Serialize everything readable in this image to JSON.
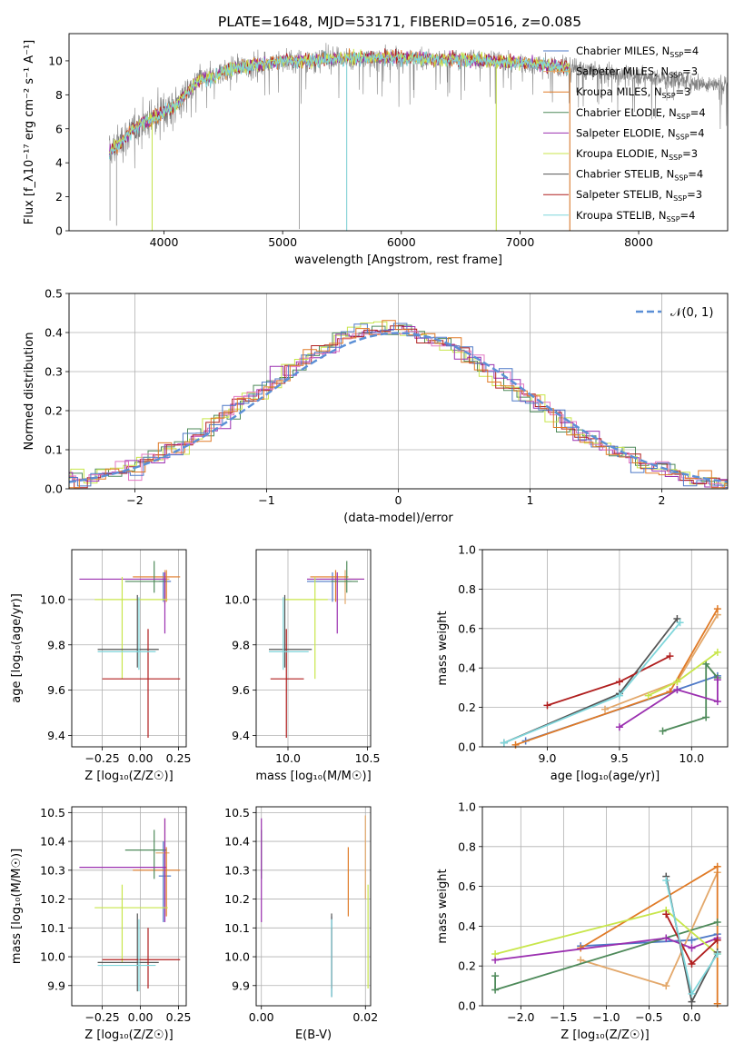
{
  "figure_title": "PLATE=1648, MJD=53171, FIBERID=0516, z=0.085",
  "colors": {
    "Chabrier MILES": "#4e79c7",
    "Salpeter MILES": "#e3a86b",
    "Kroupa MILES": "#e07a26",
    "Chabrier ELODIE": "#4e8a5a",
    "Salpeter ELODIE": "#9b30b0",
    "Kroupa ELODIE": "#c8e64b",
    "Chabrier STELIB": "#555555",
    "Salpeter STELIB": "#b01e1e",
    "Kroupa STELIB": "#7fd6db",
    "hist_blue": "#5b8fd6",
    "hist_pink": "#e377c2",
    "data": "#808080"
  },
  "chart_data": [
    {
      "type": "line",
      "id": "spectrum",
      "xlabel": "wavelength [Angstrom, rest frame]",
      "ylabel": "Flux [f_λ10⁻¹⁷ erg cm⁻² s⁻¹ A⁻¹]",
      "xlim": [
        3200,
        8750
      ],
      "ylim": [
        0,
        11.6
      ],
      "xticks": [
        4000,
        5000,
        6000,
        7000,
        8000
      ],
      "yticks": [
        0,
        2,
        4,
        6,
        8,
        10
      ],
      "grid": false,
      "legend_position": "right",
      "legend": [
        {
          "label": "Chabrier MILES, N",
          "sub": "SSP",
          "suffix": "=4"
        },
        {
          "label": "Salpeter MILES, N",
          "sub": "SSP",
          "suffix": "=3"
        },
        {
          "label": "Kroupa MILES, N",
          "sub": "SSP",
          "suffix": "=3"
        },
        {
          "label": "Chabrier ELODIE, N",
          "sub": "SSP",
          "suffix": "=4"
        },
        {
          "label": "Salpeter ELODIE, N",
          "sub": "SSP",
          "suffix": "=4"
        },
        {
          "label": "Kroupa ELODIE, N",
          "sub": "SSP",
          "suffix": "=3"
        },
        {
          "label": "Chabrier STELIB, N",
          "sub": "SSP",
          "suffix": "=4"
        },
        {
          "label": "Salpeter STELIB, N",
          "sub": "SSP",
          "suffix": "=3"
        },
        {
          "label": "Kroupa STELIB, N",
          "sub": "SSP",
          "suffix": "=4"
        }
      ],
      "continuum": [
        [
          3540,
          4.6
        ],
        [
          3600,
          5.0
        ],
        [
          3700,
          5.7
        ],
        [
          3800,
          6.3
        ],
        [
          3900,
          6.6
        ],
        [
          4000,
          7.0
        ],
        [
          4100,
          7.4
        ],
        [
          4200,
          8.2
        ],
        [
          4300,
          8.9
        ],
        [
          4400,
          9.0
        ],
        [
          4500,
          9.4
        ],
        [
          4600,
          9.6
        ],
        [
          4700,
          9.7
        ],
        [
          4800,
          9.8
        ],
        [
          4900,
          9.9
        ],
        [
          5000,
          10.0
        ],
        [
          5200,
          10.0
        ],
        [
          5400,
          10.1
        ],
        [
          5600,
          10.2
        ],
        [
          5800,
          10.2
        ],
        [
          6000,
          10.2
        ],
        [
          6200,
          10.1
        ],
        [
          6400,
          10.1
        ],
        [
          6600,
          10.1
        ],
        [
          6800,
          10.0
        ],
        [
          7000,
          9.9
        ],
        [
          7200,
          9.8
        ],
        [
          7400,
          9.6
        ]
      ],
      "data_range": [
        3540,
        8750
      ],
      "model_range": [
        3540,
        7420
      ],
      "spikes": [
        [
          3545,
          0.6
        ],
        [
          3600,
          0.3
        ],
        [
          3900,
          0
        ],
        [
          5140,
          0.1
        ],
        [
          5540,
          0
        ],
        [
          6800,
          0
        ],
        [
          7420,
          0
        ]
      ]
    },
    {
      "type": "histogram",
      "id": "residuals",
      "xlabel": "(data-model)/error",
      "ylabel": "Normed distribution",
      "xlim": [
        -2.5,
        2.5
      ],
      "ylim": [
        0,
        0.5
      ],
      "xticks": [
        -2,
        -1,
        0,
        1,
        2
      ],
      "yticks": [
        0.0,
        0.1,
        0.2,
        0.3,
        0.4,
        0.5
      ],
      "grid": true,
      "bin_width": 0.1,
      "curve_label": "𝒩(0, 1)",
      "legend_position": "top-right"
    },
    {
      "type": "scatter",
      "id": "age_vs_Z",
      "xlabel": "Z [log₁₀(Z/Z☉)]",
      "ylabel": "age  [log₁₀(age/yr)]",
      "xlim": [
        -0.45,
        0.3
      ],
      "ylim": [
        9.35,
        10.22
      ],
      "xticks": [
        -0.25,
        0.0,
        0.25
      ],
      "yticks": [
        9.4,
        9.6,
        9.8,
        10.0
      ],
      "grid": true
    },
    {
      "type": "scatter",
      "id": "age_vs_mass",
      "xlabel": "mass [log₁₀(M/M☉)]",
      "xlim": [
        9.8,
        10.52
      ],
      "ylim": [
        9.35,
        10.22
      ],
      "xticks": [
        10.0,
        10.5
      ],
      "yticks": [
        9.4,
        9.6,
        9.8,
        10.0
      ],
      "grid": true
    },
    {
      "type": "line",
      "id": "weight_vs_age",
      "xlabel": "age  [log₁₀(age/yr)]",
      "ylabel": "mass weight",
      "xlim": [
        8.55,
        10.25
      ],
      "ylim": [
        0,
        1.0
      ],
      "xticks": [
        9.0,
        9.5,
        10.0
      ],
      "yticks": [
        0.0,
        0.2,
        0.4,
        0.6,
        0.8,
        1.0
      ],
      "grid": true,
      "series": [
        {
          "name": "Chabrier MILES",
          "x": [
            8.85,
            9.9,
            10.18
          ],
          "y": [
            0.03,
            0.29,
            0.36
          ]
        },
        {
          "name": "Salpeter MILES",
          "x": [
            9.4,
            9.9,
            10.18
          ],
          "y": [
            0.19,
            0.33,
            0.67
          ]
        },
        {
          "name": "Kroupa MILES",
          "x": [
            8.78,
            9.85,
            10.18
          ],
          "y": [
            0.01,
            0.28,
            0.7
          ]
        },
        {
          "name": "Chabrier ELODIE",
          "x": [
            9.8,
            10.1,
            10.1,
            10.18
          ],
          "y": [
            0.08,
            0.15,
            0.42,
            0.35
          ]
        },
        {
          "name": "Salpeter ELODIE",
          "x": [
            9.5,
            9.9,
            10.18,
            10.18
          ],
          "y": [
            0.1,
            0.29,
            0.23,
            0.34
          ]
        },
        {
          "name": "Kroupa ELODIE",
          "x": [
            9.7,
            9.9,
            10.18
          ],
          "y": [
            0.26,
            0.33,
            0.48
          ]
        },
        {
          "name": "Chabrier STELIB",
          "x": [
            8.7,
            9.5,
            9.9
          ],
          "y": [
            0.02,
            0.27,
            0.65
          ]
        },
        {
          "name": "Salpeter STELIB",
          "x": [
            9.0,
            9.5,
            9.85
          ],
          "y": [
            0.21,
            0.33,
            0.46
          ]
        },
        {
          "name": "Kroupa STELIB",
          "x": [
            8.7,
            9.5,
            9.92
          ],
          "y": [
            0.02,
            0.26,
            0.63
          ]
        }
      ]
    },
    {
      "type": "scatter",
      "id": "mass_vs_Z",
      "xlabel": "Z [log₁₀(Z/Z☉)]",
      "ylabel": "mass [log₁₀(M/M☉)]",
      "xlim": [
        -0.45,
        0.3
      ],
      "ylim": [
        9.83,
        10.52
      ],
      "xticks": [
        -0.25,
        0.0,
        0.25
      ],
      "yticks": [
        9.9,
        10.0,
        10.1,
        10.2,
        10.3,
        10.4,
        10.5
      ],
      "grid": true
    },
    {
      "type": "scatter",
      "id": "mass_vs_EBV",
      "xlabel": "E(B-V)",
      "xlim": [
        -0.001,
        0.021
      ],
      "ylim": [
        9.83,
        10.52
      ],
      "xticks": [
        0.0,
        0.02
      ],
      "yticks": [
        9.9,
        10.0,
        10.1,
        10.2,
        10.3,
        10.4,
        10.5
      ],
      "grid": true
    },
    {
      "type": "line",
      "id": "weight_vs_Z",
      "xlabel": "Z [log₁₀(Z/Z☉)]",
      "ylabel": "mass weight",
      "xlim": [
        -2.45,
        0.42
      ],
      "ylim": [
        0,
        1.0
      ],
      "xticks": [
        -2.0,
        -1.5,
        -1.0,
        -0.5,
        0.0
      ],
      "yticks": [
        0.0,
        0.2,
        0.4,
        0.6,
        0.8,
        1.0
      ],
      "grid": true,
      "series": [
        {
          "name": "Chabrier MILES",
          "x": [
            -1.3,
            0.0,
            0.3
          ],
          "y": [
            0.3,
            0.33,
            0.36
          ]
        },
        {
          "name": "Salpeter MILES",
          "x": [
            -1.3,
            -0.3,
            0.3
          ],
          "y": [
            0.23,
            0.1,
            0.67
          ]
        },
        {
          "name": "Kroupa MILES",
          "x": [
            -1.3,
            0.3,
            0.3
          ],
          "y": [
            0.29,
            0.7,
            0.01
          ]
        },
        {
          "name": "Chabrier ELODIE",
          "x": [
            -2.3,
            -2.3,
            0.3
          ],
          "y": [
            0.15,
            0.08,
            0.42
          ]
        },
        {
          "name": "Salpeter ELODIE",
          "x": [
            -2.3,
            -0.3,
            0.0,
            0.3
          ],
          "y": [
            0.23,
            0.34,
            0.29,
            0.34
          ]
        },
        {
          "name": "Kroupa ELODIE",
          "x": [
            -2.3,
            -0.3,
            0.3
          ],
          "y": [
            0.26,
            0.48,
            0.26
          ]
        },
        {
          "name": "Chabrier STELIB",
          "x": [
            -0.3,
            0.0,
            0.3
          ],
          "y": [
            0.65,
            0.02,
            0.27
          ]
        },
        {
          "name": "Salpeter STELIB",
          "x": [
            -0.3,
            0.0,
            0.3
          ],
          "y": [
            0.46,
            0.21,
            0.33
          ]
        },
        {
          "name": "Kroupa STELIB",
          "x": [
            -0.3,
            0.0,
            0.3
          ],
          "y": [
            0.63,
            0.06,
            0.26
          ]
        }
      ]
    }
  ],
  "estimates": [
    {
      "name": "Chabrier MILES",
      "Z": 0.15,
      "Zerr": [
        0.12,
        0.2
      ],
      "age": 10.08,
      "ageerr": [
        9.99,
        10.12
      ],
      "mass": 10.28,
      "masserr": [
        10.12,
        10.4
      ],
      "ebv": 0.0135,
      "ebverr": [
        9.86,
        10.14
      ]
    },
    {
      "name": "Salpeter MILES",
      "Z": 0.16,
      "Zerr": [
        0.1,
        0.19
      ],
      "age": 10.09,
      "ageerr": [
        9.98,
        10.13
      ],
      "mass": 10.36,
      "masserr": [
        10.2,
        10.48
      ],
      "ebv": 0.02,
      "ebverr": [
        10.2,
        10.49
      ]
    },
    {
      "name": "Kroupa MILES",
      "Z": 0.17,
      "Zerr": [
        -0.05,
        0.26
      ],
      "age": 10.1,
      "ageerr": [
        9.99,
        10.13
      ],
      "mass": 10.3,
      "masserr": [
        10.14,
        10.38
      ],
      "ebv": 0.0167,
      "ebverr": [
        10.14,
        10.38
      ]
    },
    {
      "name": "Chabrier ELODIE",
      "Z": 0.09,
      "Zerr": [
        -0.1,
        0.17
      ],
      "age": 10.08,
      "ageerr": [
        10.03,
        10.17
      ],
      "mass": 10.37,
      "masserr": [
        10.27,
        10.44
      ],
      "ebv": 0.0,
      "ebverr": [
        10.27,
        10.44
      ]
    },
    {
      "name": "Salpeter ELODIE",
      "Z": 0.16,
      "Zerr": [
        -0.4,
        0.17
      ],
      "age": 10.09,
      "ageerr": [
        9.85,
        10.12
      ],
      "mass": 10.31,
      "masserr": [
        10.12,
        10.48
      ],
      "ebv": 0.0,
      "ebverr": [
        10.12,
        10.48
      ]
    },
    {
      "name": "Kroupa ELODIE",
      "Z": -0.12,
      "Zerr": [
        -0.3,
        0.18
      ],
      "age": 10.0,
      "ageerr": [
        9.65,
        10.1
      ],
      "mass": 10.17,
      "masserr": [
        9.98,
        10.25
      ],
      "ebv": 0.0205,
      "ebverr": [
        9.89,
        10.25
      ]
    },
    {
      "name": "Chabrier STELIB",
      "Z": -0.02,
      "Zerr": [
        -0.28,
        0.12
      ],
      "age": 9.78,
      "ageerr": [
        9.7,
        10.02
      ],
      "mass": 9.98,
      "masserr": [
        9.88,
        10.15
      ],
      "ebv": 0.0135,
      "ebverr": [
        9.86,
        10.15
      ]
    },
    {
      "name": "Salpeter STELIB",
      "Z": 0.05,
      "Zerr": [
        -0.25,
        0.26
      ],
      "age": 9.65,
      "ageerr": [
        9.39,
        9.87
      ],
      "mass": 9.99,
      "masserr": [
        9.89,
        10.1
      ],
      "ebv": 0.0135,
      "ebverr": [
        9.89,
        10.1
      ]
    },
    {
      "name": "Kroupa STELIB",
      "Z": -0.01,
      "Zerr": [
        -0.28,
        0.1
      ],
      "age": 9.77,
      "ageerr": [
        9.69,
        10.01
      ],
      "mass": 9.97,
      "masserr": [
        9.88,
        10.13
      ],
      "ebv": 0.0135,
      "ebverr": [
        9.86,
        10.13
      ]
    }
  ]
}
